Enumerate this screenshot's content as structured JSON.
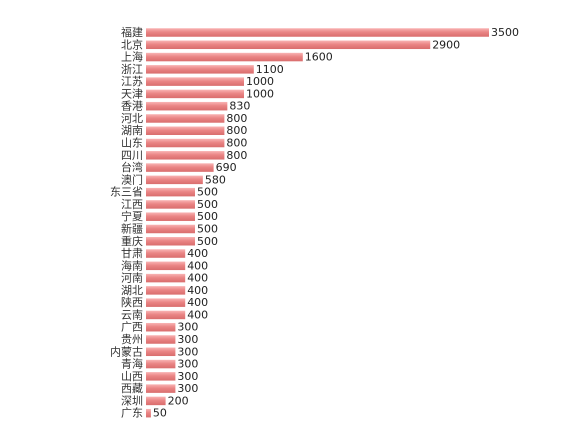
{
  "chart_data": {
    "type": "bar",
    "orientation": "horizontal",
    "categories": [
      "福建",
      "北京",
      "上海",
      "浙江",
      "江苏",
      "天津",
      "香港",
      "河北",
      "湖南",
      "山东",
      "四川",
      "台湾",
      "澳门",
      "东三省",
      "江西",
      "宁夏",
      "新疆",
      "重庆",
      "甘肃",
      "海南",
      "河南",
      "湖北",
      "陕西",
      "云南",
      "广西",
      "贵州",
      "内蒙古",
      "青海",
      "山西",
      "西藏",
      "深圳",
      "广东"
    ],
    "values": [
      3500,
      2900,
      1600,
      1100,
      1000,
      1000,
      830,
      800,
      800,
      800,
      800,
      690,
      580,
      500,
      500,
      500,
      500,
      500,
      400,
      400,
      400,
      400,
      400,
      400,
      300,
      300,
      300,
      300,
      300,
      300,
      200,
      50
    ],
    "xlim": [
      0,
      3500
    ],
    "grid": false,
    "colors": {
      "bar_top": "#f9b4b4",
      "bar_main": "#ea8585",
      "bar_bottom": "#d96d6d"
    }
  }
}
